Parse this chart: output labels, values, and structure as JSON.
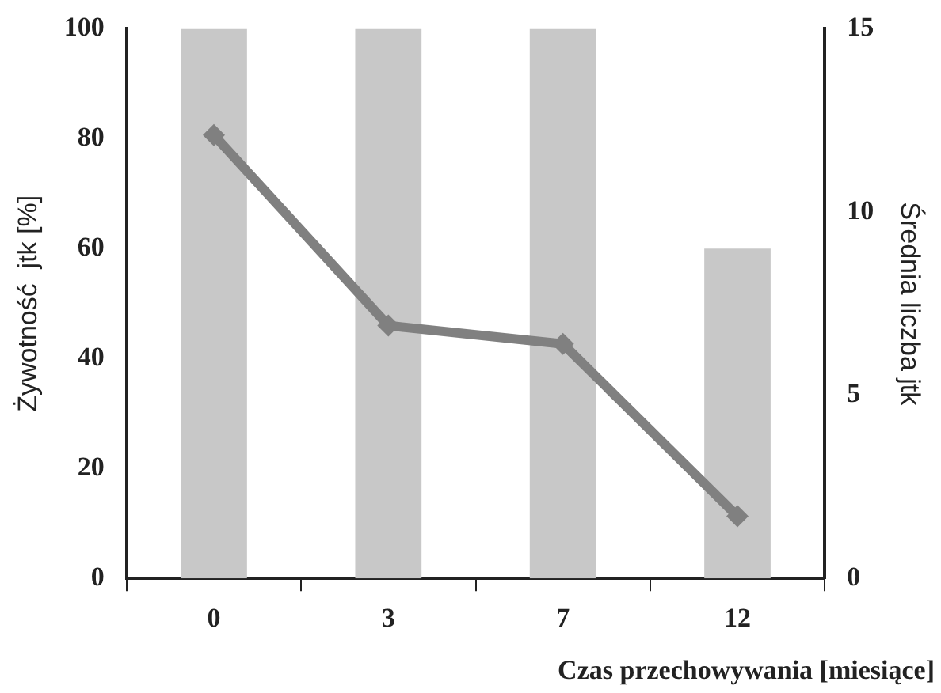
{
  "chart_data": {
    "type": "bar",
    "xlabel": "Czas przechowywania  [miesiące]",
    "ylabel": "Żywotność  jtk [%]",
    "y2label": "Średnia liczba jtk",
    "categories": [
      "0",
      "3",
      "7",
      "12"
    ],
    "series": [
      {
        "color": "#c8c8c8",
        "values": [
          100,
          100,
          100,
          60
        ]
      },
      {
        "type": "line",
        "axis": "y2",
        "color": "#808080",
        "values": [
          12.1,
          6.9,
          6.4,
          1.7
        ]
      }
    ],
    "ylim": [
      0,
      100
    ],
    "yticks": [
      0,
      20,
      40,
      60,
      80,
      100
    ],
    "y2lim": [
      0,
      15
    ],
    "y2ticks": [
      0,
      5,
      10,
      15
    ],
    "grid": false,
    "legend": false,
    "marker": "diamond",
    "line_style": "solid"
  }
}
